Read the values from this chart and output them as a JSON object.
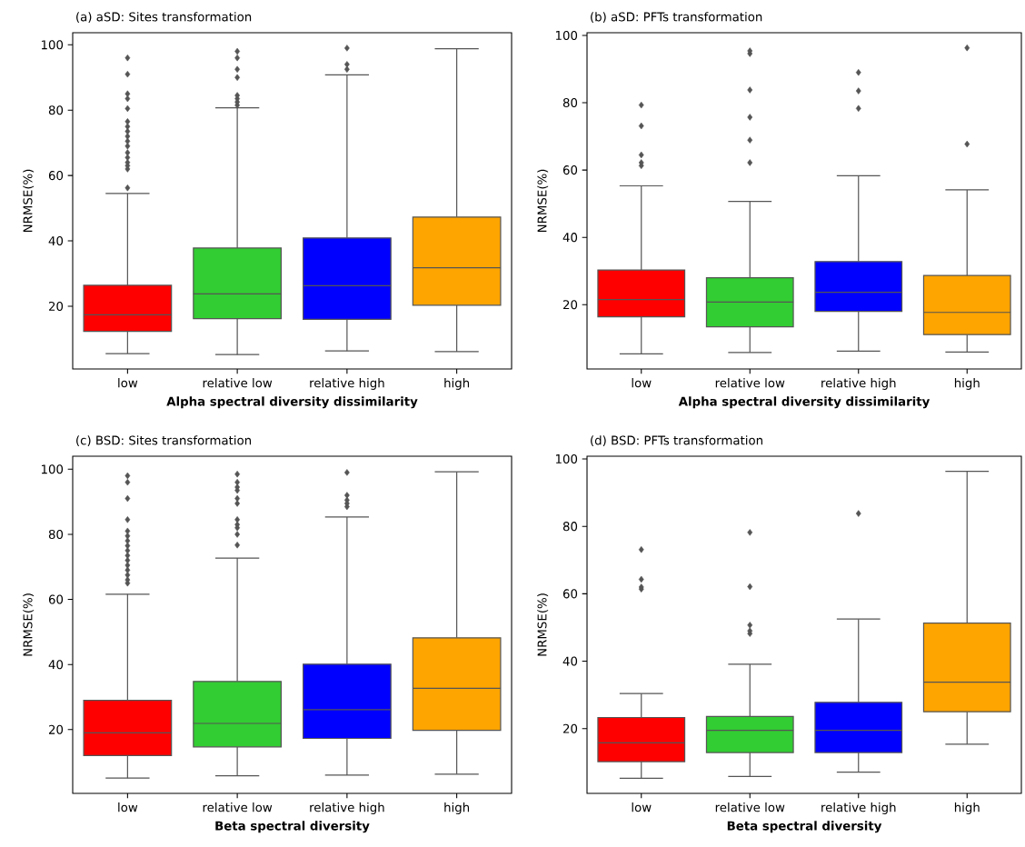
{
  "chart_data": [
    {
      "type": "box",
      "title": "(a) aSD: Sites transformation",
      "xlabel": "Alpha spectral diversity dissimilarity",
      "ylabel": "NRMSE(%)",
      "categories": [
        "low",
        "relative low",
        "relative high",
        "high"
      ],
      "colors": [
        "#ff0000",
        "#32cd32",
        "#0000ff",
        "#ffa500"
      ],
      "ylim": [
        0.8,
        103.7
      ],
      "yticks": [
        20,
        40,
        60,
        80,
        100
      ],
      "marker": "diamond",
      "grid": false,
      "boxes": [
        {
          "low": 5.5,
          "q1": 12.3,
          "median": 17.4,
          "q3": 26.4,
          "high": 54.5,
          "outliers": [
            56.2,
            62,
            63,
            64,
            65.5,
            67,
            69,
            70.5,
            72,
            73.5,
            75,
            76.5,
            80.5,
            83.5,
            85,
            91,
            96
          ]
        },
        {
          "low": 5.2,
          "q1": 16.2,
          "median": 23.8,
          "q3": 37.8,
          "high": 80.7,
          "outliers": [
            81.5,
            82.5,
            83.5,
            84.5,
            90,
            92.5,
            96,
            98
          ]
        },
        {
          "low": 6.3,
          "q1": 16,
          "median": 26.3,
          "q3": 40.9,
          "high": 90.8,
          "outliers": [
            92.5,
            94,
            99
          ]
        },
        {
          "low": 6.1,
          "q1": 20.3,
          "median": 31.8,
          "q3": 47.3,
          "high": 98.8
        }
      ]
    },
    {
      "type": "box",
      "title": "(b) aSD: PFTs transformation",
      "xlabel": "Alpha spectral diversity dissimilarity",
      "ylabel": "NRMSE(%)",
      "categories": [
        "low",
        "relative low",
        "relative high",
        "high"
      ],
      "colors": [
        "#ff0000",
        "#32cd32",
        "#0000ff",
        "#ffa500"
      ],
      "ylim": [
        0.9,
        100.8
      ],
      "yticks": [
        20,
        40,
        60,
        80,
        100
      ],
      "marker": "diamond",
      "grid": false,
      "boxes": [
        {
          "low": 5.4,
          "q1": 16.4,
          "median": 21.5,
          "q3": 30.3,
          "high": 55.3,
          "outliers": [
            61.3,
            62.2,
            64.5,
            73.1,
            79.3
          ]
        },
        {
          "low": 5.8,
          "q1": 13.4,
          "median": 20.8,
          "q3": 28,
          "high": 50.7,
          "outliers": [
            62.2,
            68.9,
            75.7,
            83.8,
            94.6,
            95.4
          ]
        },
        {
          "low": 6.2,
          "q1": 18,
          "median": 23.7,
          "q3": 32.8,
          "high": 58.3,
          "outliers": [
            78.3,
            83.5,
            89
          ]
        },
        {
          "low": 5.9,
          "q1": 11.1,
          "median": 17.7,
          "q3": 28.7,
          "high": 54.1,
          "outliers": [
            67.7,
            96.3
          ]
        }
      ]
    },
    {
      "type": "box",
      "title": "(c) BSD: Sites transformation",
      "xlabel": "Beta spectral diversity",
      "ylabel": "NRMSE(%)",
      "categories": [
        "low",
        "relative low",
        "relative high",
        "high"
      ],
      "colors": [
        "#ff0000",
        "#32cd32",
        "#0000ff",
        "#ffa500"
      ],
      "ylim": [
        0.4,
        104
      ],
      "yticks": [
        20,
        40,
        60,
        80,
        100
      ],
      "marker": "diamond",
      "grid": false,
      "boxes": [
        {
          "low": 5.1,
          "q1": 12,
          "median": 19,
          "q3": 29,
          "high": 61.6,
          "outliers": [
            65,
            66,
            67.5,
            69,
            70.5,
            72,
            73.5,
            75,
            76.5,
            78,
            79.5,
            81,
            84.5,
            91,
            96,
            98
          ]
        },
        {
          "low": 5.8,
          "q1": 14.7,
          "median": 21.9,
          "q3": 34.8,
          "high": 72.7,
          "outliers": [
            76.7,
            80,
            82,
            83,
            84.5,
            89.5,
            91,
            93.5,
            94.5,
            96,
            98.5
          ]
        },
        {
          "low": 6,
          "q1": 17.3,
          "median": 26.1,
          "q3": 40.1,
          "high": 85.3,
          "outliers": [
            88.5,
            89.5,
            90.5,
            92,
            99
          ]
        },
        {
          "low": 6.3,
          "q1": 19.8,
          "median": 32.7,
          "q3": 48.2,
          "high": 99.2
        }
      ]
    },
    {
      "type": "box",
      "title": "(d) BSD: PFTs transformation",
      "xlabel": "Beta spectral diversity",
      "ylabel": "NRMSE(%)",
      "categories": [
        "low",
        "relative low",
        "relative high",
        "high"
      ],
      "colors": [
        "#ff0000",
        "#32cd32",
        "#0000ff",
        "#ffa500"
      ],
      "ylim": [
        0.8,
        100.8
      ],
      "yticks": [
        20,
        40,
        60,
        80,
        100
      ],
      "marker": "diamond",
      "grid": false,
      "boxes": [
        {
          "low": 5.3,
          "q1": 10.2,
          "median": 15.8,
          "q3": 23.3,
          "high": 30.4,
          "outliers": [
            61.4,
            62,
            64.3,
            73.1
          ]
        },
        {
          "low": 5.8,
          "q1": 12.9,
          "median": 19.5,
          "q3": 23.6,
          "high": 39.1,
          "outliers": [
            48.2,
            49,
            50.7,
            62.1,
            78.2
          ]
        },
        {
          "low": 7.1,
          "q1": 12.9,
          "median": 19.5,
          "q3": 27.8,
          "high": 52.5,
          "outliers": [
            83.8
          ]
        },
        {
          "low": 15.4,
          "q1": 25,
          "median": 33.8,
          "q3": 51.3,
          "high": 96.3
        }
      ]
    }
  ]
}
